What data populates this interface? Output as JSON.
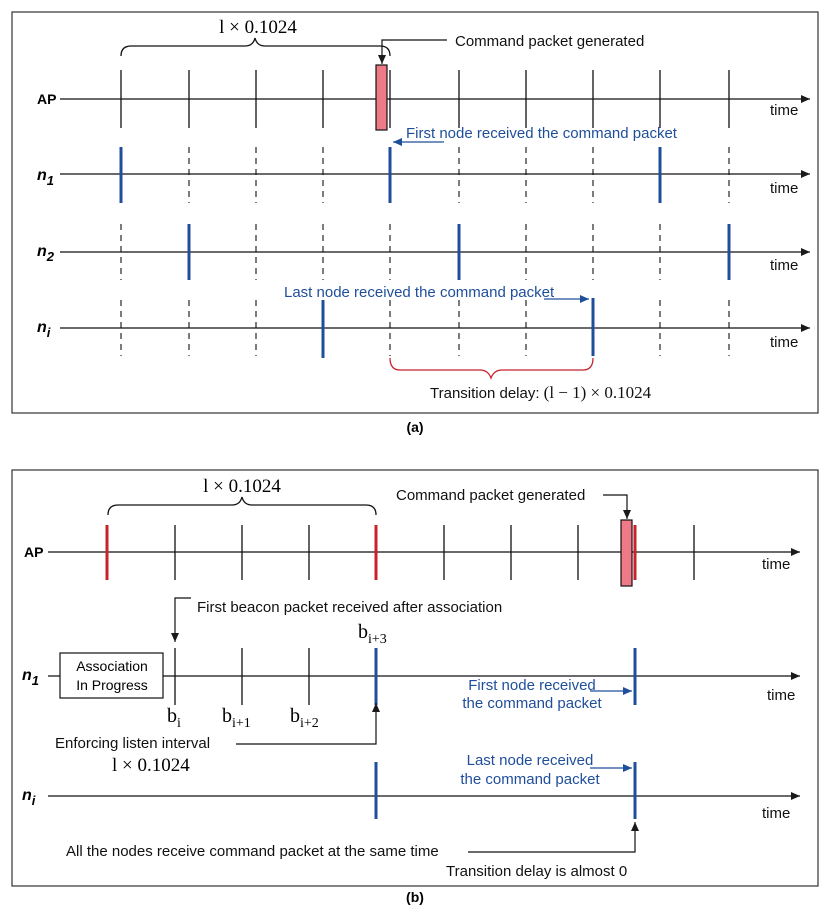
{
  "colors": {
    "blue": "#1f4e9b",
    "red": "#c8232c",
    "pink": "#ef7a87",
    "dark": "#1a1a1a"
  },
  "panel_a": {
    "caption": "(a)",
    "interval_label": "l × 0.1024",
    "rows": [
      {
        "name": "AP",
        "time": "time"
      },
      {
        "name": "n",
        "sub": "1",
        "time": "time"
      },
      {
        "name": "n",
        "sub": "2",
        "time": "time"
      },
      {
        "name": "n",
        "sub": "i",
        "time": "time"
      }
    ],
    "command_generated": "Command packet generated",
    "first_node": "First node received the command packet",
    "last_node": "Last node received the command packet",
    "transition_delay": "Transition delay: ",
    "transition_delay_expr": "(l − 1) × 0.1024"
  },
  "panel_b": {
    "caption": "(b)",
    "interval_label": "l × 0.1024",
    "rows": [
      {
        "name": "AP",
        "time": "time"
      },
      {
        "name": "n",
        "sub": "1",
        "time": "time"
      },
      {
        "name": "n",
        "sub": "i",
        "time": "time"
      }
    ],
    "command_generated": "Command packet generated",
    "first_beacon": "First beacon packet received after association",
    "association_line1": "Association",
    "association_line2": "In Progress",
    "beacons": [
      {
        "base": "b",
        "sub": "i"
      },
      {
        "base": "b",
        "sub": "i+1"
      },
      {
        "base": "b",
        "sub": "i+2"
      },
      {
        "base": "b",
        "sub": "i+3"
      }
    ],
    "enforcing": "Enforcing listen interval",
    "enforcing_value": "l × 0.1024",
    "first_node_line1": "First node received",
    "first_node_line2": "the command packet",
    "last_node_line1": "Last node received",
    "last_node_line2": "the command packet",
    "all_nodes": "All the nodes receive command packet at the same time",
    "transition_zero": "Transition delay is almost 0"
  }
}
